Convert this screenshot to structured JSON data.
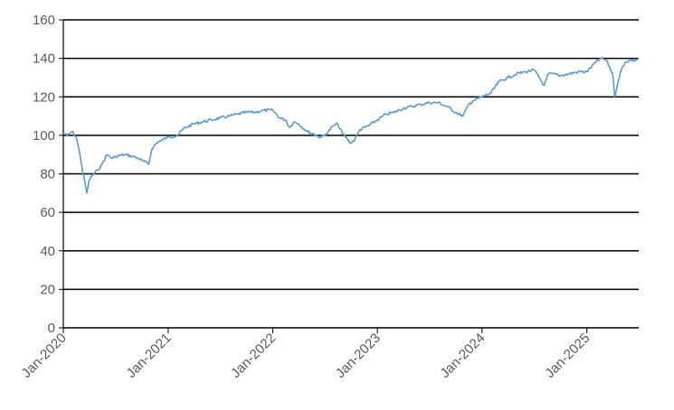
{
  "chart_data": {
    "type": "line",
    "title": "",
    "xlabel": "",
    "ylabel": "",
    "ylim": [
      0,
      160
    ],
    "y_ticks": [
      "0",
      "20",
      "40",
      "60",
      "80",
      "100",
      "120",
      "140",
      "160"
    ],
    "x_ticks": [
      "Jan-2020",
      "Jan-2021",
      "Jan-2022",
      "Jan-2023",
      "Jan-2024",
      "Jan-2025"
    ],
    "xlim": [
      "2020-01-01",
      "2025-07-01"
    ],
    "grid": "horizontal",
    "legend": "none",
    "series_color": "#5b9bd5",
    "series": [
      {
        "x": [
          "2020-01-01",
          "2020-01-15",
          "2020-02-01",
          "2020-02-15",
          "2020-02-28",
          "2020-03-10",
          "2020-03-23",
          "2020-04-01",
          "2020-04-15",
          "2020-05-01",
          "2020-05-15",
          "2020-06-01",
          "2020-06-10",
          "2020-06-20",
          "2020-07-01",
          "2020-08-01",
          "2020-09-01",
          "2020-09-20",
          "2020-10-01",
          "2020-10-25",
          "2020-11-05",
          "2020-11-15",
          "2020-12-01",
          "2021-01-01",
          "2021-02-01",
          "2021-03-01",
          "2021-04-01",
          "2021-05-01",
          "2021-06-01",
          "2021-07-01",
          "2021-08-01",
          "2021-09-01",
          "2021-10-01",
          "2021-11-01",
          "2021-12-01",
          "2022-01-01",
          "2022-01-25",
          "2022-02-15",
          "2022-03-01",
          "2022-03-15",
          "2022-04-01",
          "2022-05-01",
          "2022-05-20",
          "2022-06-15",
          "2022-07-01",
          "2022-08-01",
          "2022-08-15",
          "2022-09-01",
          "2022-09-30",
          "2022-10-15",
          "2022-11-01",
          "2022-12-01",
          "2023-01-01",
          "2023-02-01",
          "2023-03-01",
          "2023-04-01",
          "2023-05-01",
          "2023-06-01",
          "2023-07-01",
          "2023-08-01",
          "2023-09-01",
          "2023-10-01",
          "2023-10-27",
          "2023-11-15",
          "2023-12-01",
          "2024-01-01",
          "2024-02-01",
          "2024-03-01",
          "2024-04-01",
          "2024-05-01",
          "2024-06-01",
          "2024-07-01",
          "2024-08-05",
          "2024-08-20",
          "2024-09-01",
          "2024-10-01",
          "2024-11-01",
          "2024-12-01",
          "2025-01-01",
          "2025-02-01",
          "2025-02-20",
          "2025-03-10",
          "2025-04-01",
          "2025-04-08",
          "2025-04-20",
          "2025-05-01",
          "2025-05-15",
          "2025-06-01",
          "2025-06-20",
          "2025-07-01"
        ],
        "values": [
          101,
          100,
          102,
          99,
          90,
          80,
          70,
          77,
          80,
          82,
          85,
          90,
          89,
          88,
          89,
          90,
          89,
          88,
          87,
          85,
          93,
          95,
          97,
          99,
          100,
          104,
          106,
          107,
          108,
          109,
          110,
          111,
          112,
          112,
          113,
          113,
          109,
          108,
          104,
          107,
          106,
          102,
          101,
          99,
          100,
          105,
          106,
          101,
          96,
          98,
          103,
          105,
          108,
          111,
          112,
          114,
          115,
          116,
          117,
          117,
          115,
          112,
          110,
          116,
          118,
          120,
          122,
          128,
          130,
          132,
          133,
          134,
          126,
          132,
          132,
          131,
          132,
          133,
          133,
          138,
          140,
          139,
          132,
          120,
          128,
          134,
          138,
          139,
          139,
          140
        ]
      }
    ]
  }
}
